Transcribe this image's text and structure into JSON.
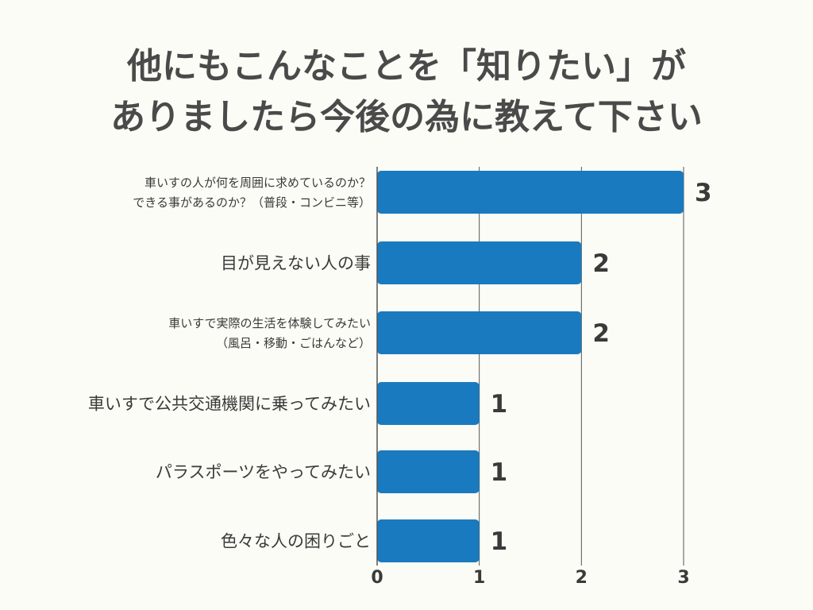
{
  "chart_data": {
    "type": "bar",
    "orientation": "horizontal",
    "title_lines": [
      "他にもこんなことを「知りたい」が",
      "ありましたら今後の為に教えて下さい"
    ],
    "categories": [
      [
        "車いすの人が何を周囲に求めているのか？",
        "できる事があるのか？（普段・コンビニ等）"
      ],
      [
        "目が見えない人の事"
      ],
      [
        "車いすで実際の生活を体験してみたい",
        "（風呂・移動・ごはんなど）"
      ],
      [
        "車いすで公共交通機関に乗ってみたい"
      ],
      [
        "パラスポーツをやってみたい"
      ],
      [
        "色々な人の困りごと"
      ]
    ],
    "values": [
      3,
      2,
      2,
      1,
      1,
      1
    ],
    "value_labels": [
      "3",
      "2",
      "2",
      "1",
      "1",
      "1"
    ],
    "x_ticks": [
      "0",
      "1",
      "2",
      "3"
    ],
    "xlim": [
      0,
      3
    ],
    "grid": true,
    "legend": "none",
    "bar_color": "#1a7abf"
  }
}
